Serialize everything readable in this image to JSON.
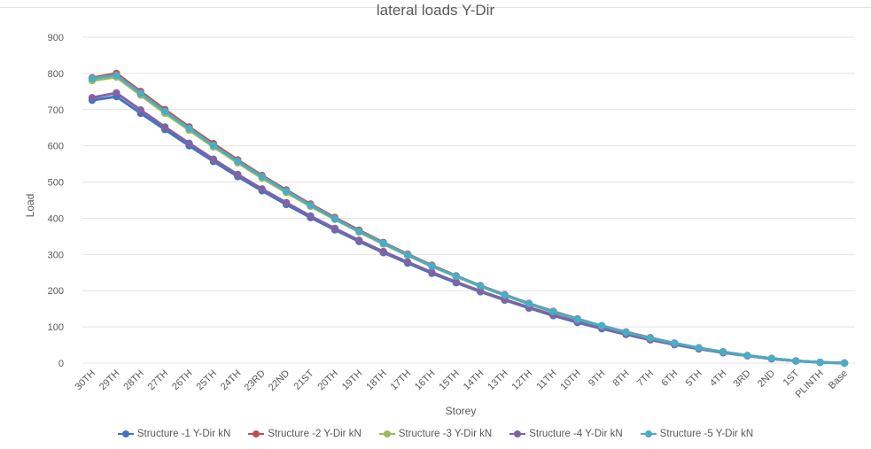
{
  "chart_data": {
    "type": "line",
    "title": "lateral loads Y-Dir",
    "xlabel": "Storey",
    "ylabel": "Load",
    "ylim": [
      0,
      900
    ],
    "yticks": [
      0,
      100,
      200,
      300,
      400,
      500,
      600,
      700,
      800,
      900
    ],
    "grid": true,
    "legend_position": "bottom",
    "categories": [
      "30TH",
      "29TH",
      "28TH",
      "27TH",
      "26TH",
      "25TH",
      "24TH",
      "23RD",
      "22ND",
      "21ST",
      "20TH",
      "19TH",
      "18TH",
      "17TH",
      "16TH",
      "15TH",
      "14TH",
      "13TH",
      "12TH",
      "11TH",
      "10TH",
      "9TH",
      "8TH",
      "7TH",
      "6TH",
      "5TH",
      "4TH",
      "3RD",
      "2ND",
      "1ST",
      "PLINTH",
      "Base"
    ],
    "series": [
      {
        "name": "Structure -1 Y-Dir kN",
        "color": "#4472C4",
        "values": [
          726,
          736,
          690,
          645,
          600,
          557,
          515,
          476,
          438,
          402,
          368,
          336,
          305,
          276,
          248,
          222,
          197,
          174,
          152,
          131,
          112,
          95,
          79,
          64,
          51,
          39,
          29,
          20,
          12,
          6,
          2,
          0
        ]
      },
      {
        "name": "Structure -2 Y-Dir kN",
        "color": "#C0504D",
        "values": [
          788,
          800,
          750,
          700,
          652,
          606,
          561,
          518,
          478,
          439,
          402,
          367,
          333,
          301,
          270,
          241,
          214,
          189,
          165,
          143,
          122,
          103,
          86,
          70,
          55,
          42,
          31,
          21,
          13,
          6,
          2,
          0
        ]
      },
      {
        "name": "Structure -3 Y-Dir kN",
        "color": "#9BBB59",
        "values": [
          780,
          790,
          740,
          690,
          643,
          597,
          553,
          511,
          471,
          433,
          397,
          362,
          329,
          297,
          267,
          239,
          212,
          187,
          163,
          141,
          121,
          102,
          85,
          69,
          55,
          42,
          31,
          21,
          13,
          6,
          2,
          0
        ]
      },
      {
        "name": "Structure -4 Y-Dir kN",
        "color": "#8064A2",
        "values": [
          733,
          746,
          699,
          652,
          607,
          563,
          521,
          481,
          443,
          406,
          372,
          339,
          308,
          279,
          251,
          224,
          199,
          176,
          154,
          133,
          114,
          97,
          80,
          65,
          52,
          40,
          29,
          20,
          12,
          6,
          2,
          0
        ]
      },
      {
        "name": "Structure -5 Y-Dir kN",
        "color": "#4BACC6",
        "values": [
          786,
          795,
          745,
          695,
          648,
          601,
          557,
          515,
          475,
          436,
          399,
          364,
          331,
          299,
          268,
          240,
          213,
          188,
          164,
          142,
          121,
          103,
          85,
          69,
          55,
          42,
          31,
          21,
          13,
          6,
          2,
          0
        ]
      }
    ]
  }
}
